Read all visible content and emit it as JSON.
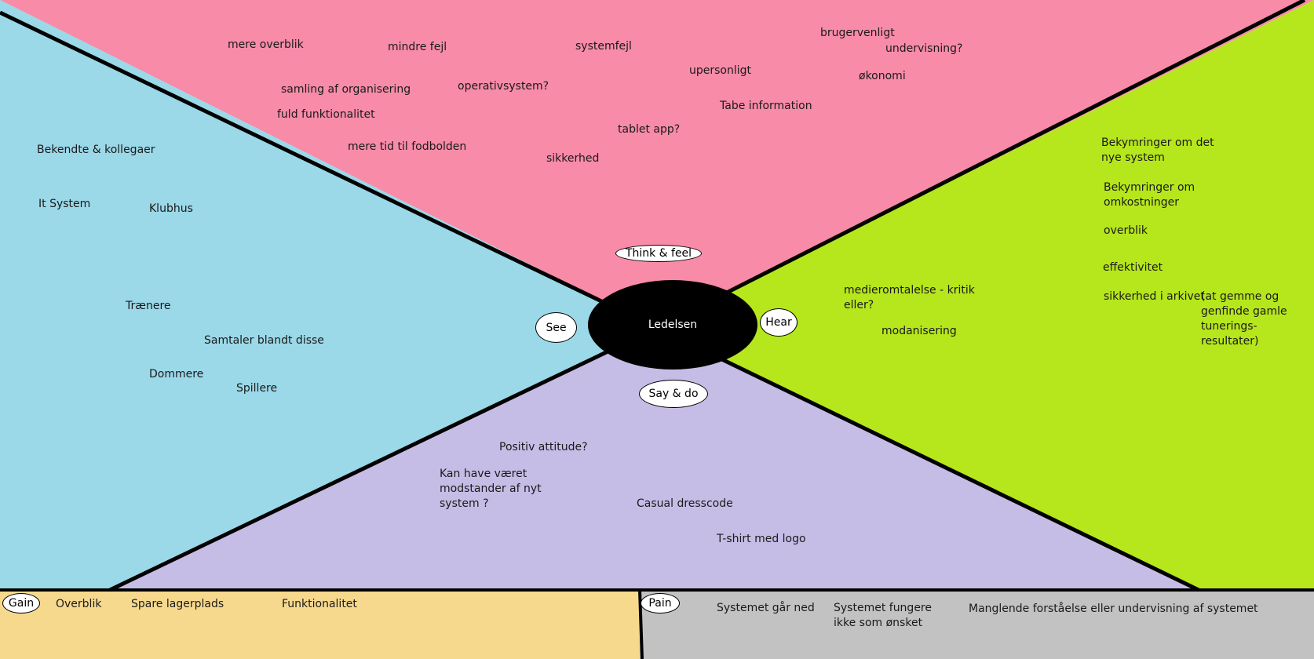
{
  "colors": {
    "think_feel_bg": "#f78ba8",
    "see_bg": "#9bd8e8",
    "hear_bg": "#b6e61c",
    "say_do_bg": "#c6bde6",
    "gain_bg": "#f7d98d",
    "pain_bg": "#c2c2c2",
    "center": "#000000"
  },
  "center": {
    "label": "Ledelsen"
  },
  "labels": {
    "think_feel": "Think & feel",
    "see": "See",
    "hear": "Hear",
    "say_do": "Say & do",
    "gain": "Gain",
    "pain": "Pain"
  },
  "think_feel_notes": [
    "mere overblik",
    "mindre fejl",
    "systemfejl",
    "brugervenligt",
    "undervisning?",
    "upersonligt",
    "økonomi",
    "samling af organisering",
    "operativsystem?",
    "Tabe information",
    "fuld funktionalitet",
    "tablet app?",
    "mere tid til fodbolden",
    "sikkerhed"
  ],
  "see_notes": [
    "Bekendte & kollegaer",
    "It System",
    "Klubhus",
    "Trænere",
    "Samtaler blandt disse",
    "Dommere",
    "Spillere"
  ],
  "hear_notes": [
    "Bekymringer om det nye system",
    "Bekymringer om omkostninger",
    "overblik",
    "effektivitet",
    "sikkerhed i arkivet",
    "(at gemme og genfinde gamle tunerings-resultater)",
    "medieromtalelse - kritik eller?",
    "modanisering"
  ],
  "say_do_notes": [
    "Positiv attitude?",
    "Kan have været modstander af nyt system ?",
    "Casual dresscode",
    "T-shirt med logo"
  ],
  "gain_notes": [
    "Overblik",
    "Spare lagerplads",
    "Funktionalitet"
  ],
  "pain_notes": [
    "Systemet går ned",
    "Systemet fungere ikke som ønsket",
    "Manglende forståelse eller undervisning af systemet"
  ]
}
